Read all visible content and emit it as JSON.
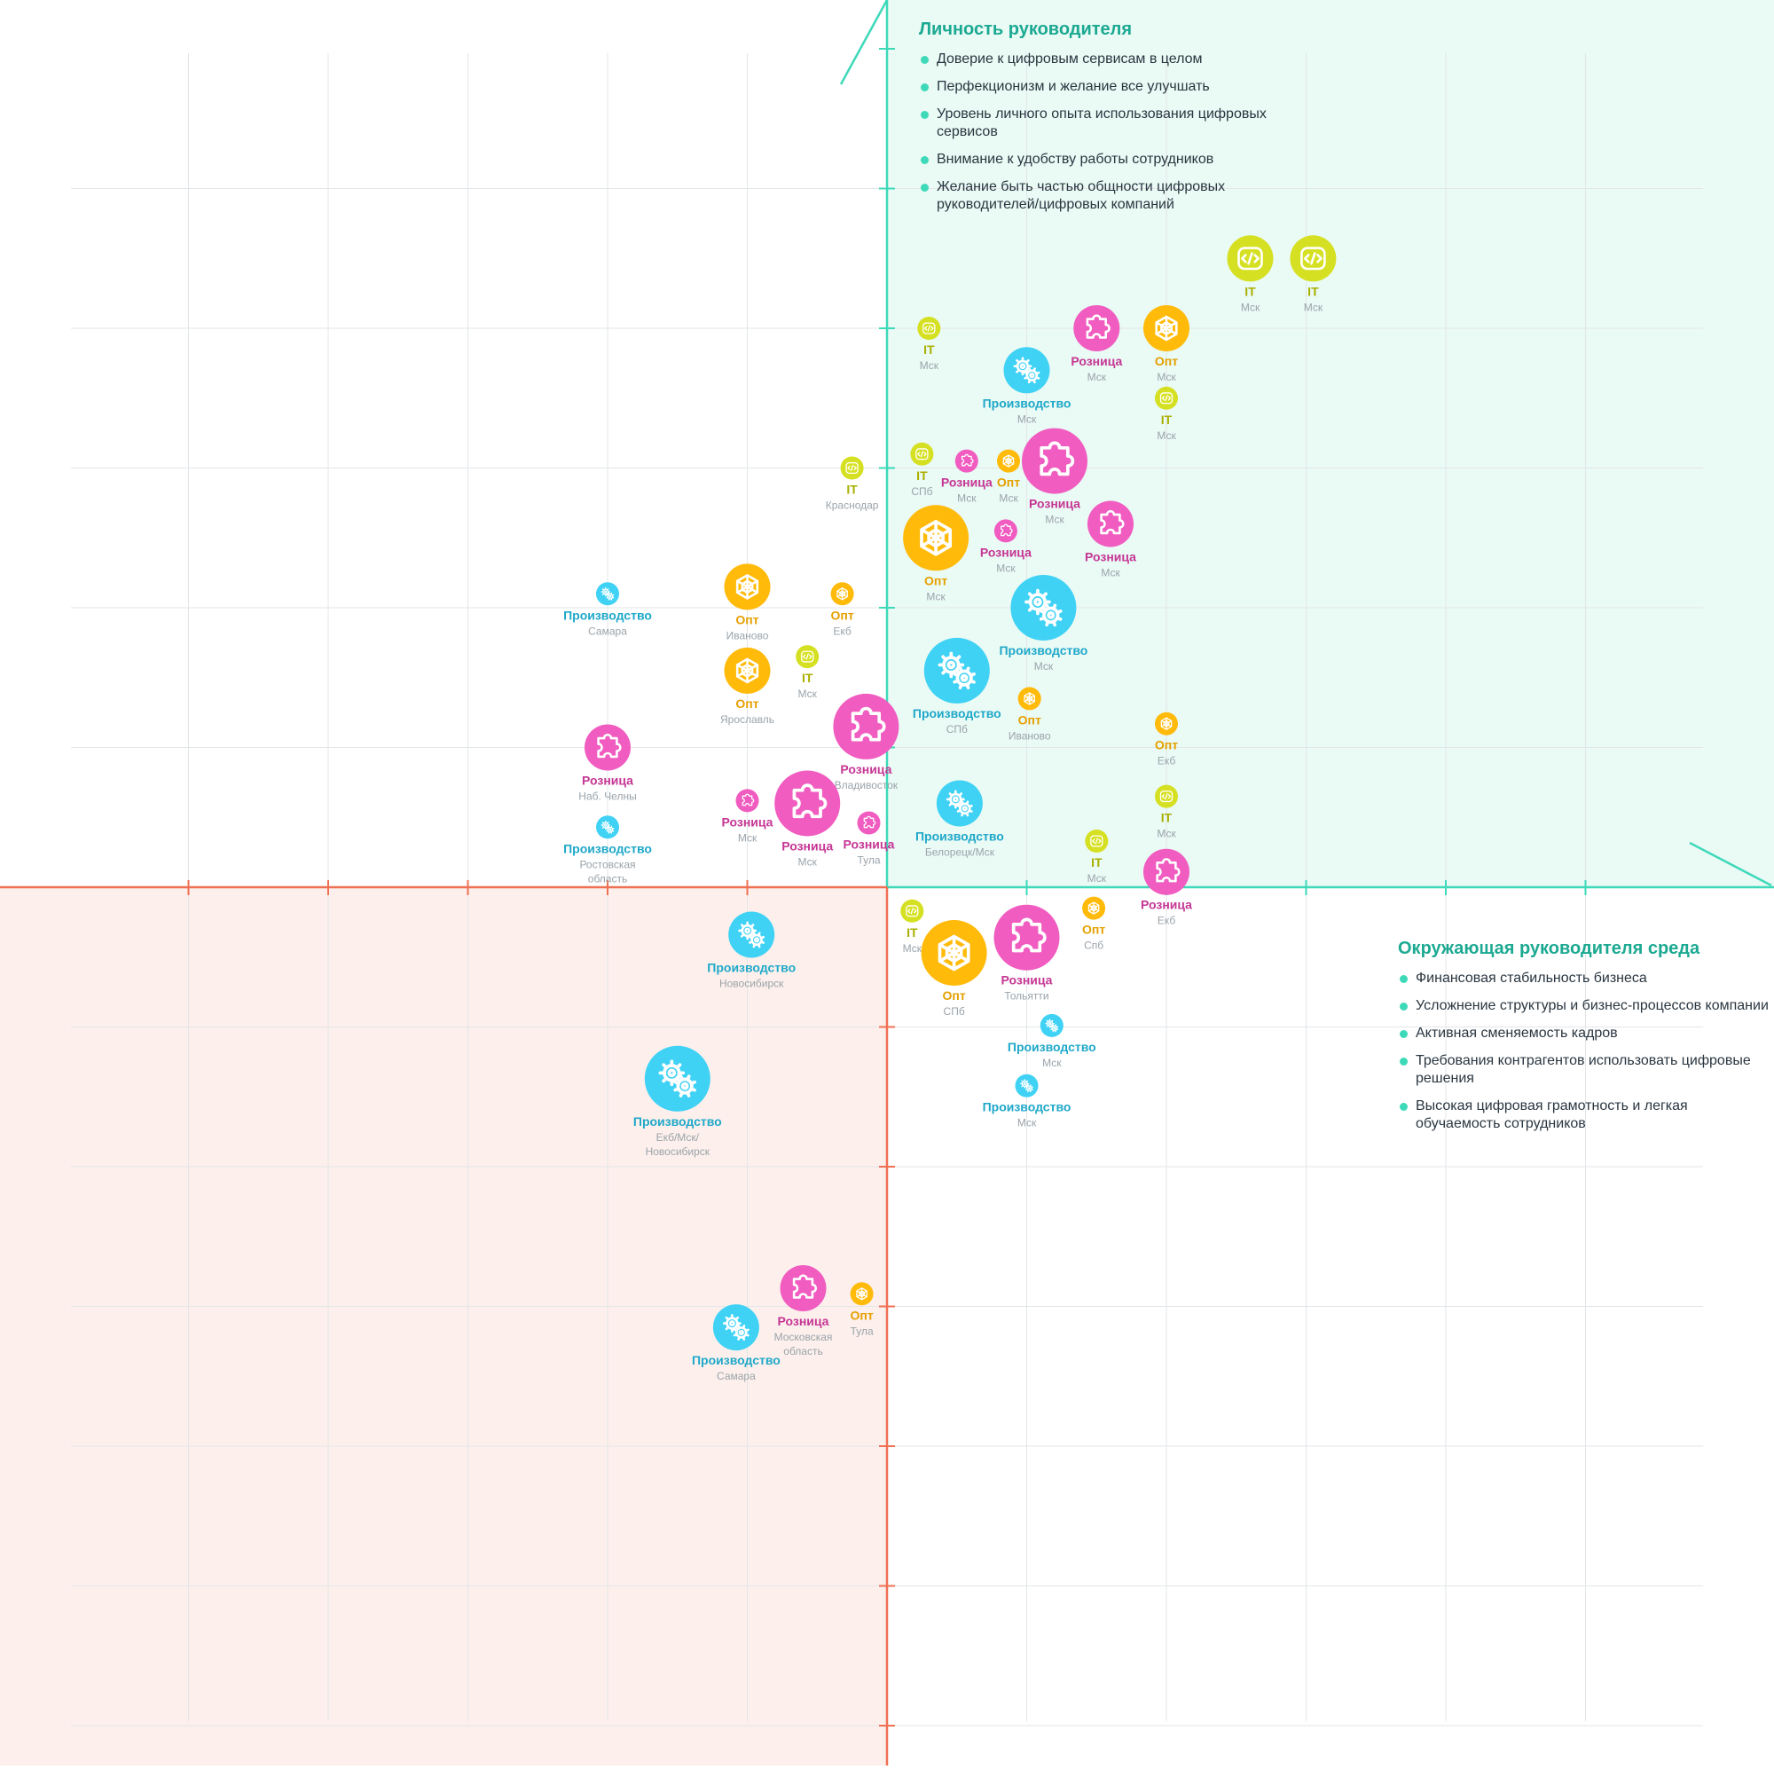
{
  "legend_personality": {
    "title": "Личность руководителя",
    "items": [
      "Доверие к цифровым сервисам в целом",
      "Перфекционизм и желание все улучшать",
      "Уровень личного опыта использования цифровых сервисов",
      "Внимание к удобству работы сотрудников",
      "Желание быть частью общности цифровых руководителей/цифровых компаний"
    ]
  },
  "legend_environment": {
    "title": "Окружающая руководителя среда",
    "items": [
      "Финансовая стабильность бизнеса",
      "Усложнение структуры и бизнес-процессов компании",
      "Активная сменяемость кадров",
      "Требования контрагентов использовать цифровые решения",
      "Высокая цифровая грамотность и легкая обучаемость сотрудников"
    ]
  },
  "colors": {
    "it": "#d6e022",
    "it_text": "#a9b000",
    "opt": "#ffba0a",
    "opt_text": "#e5a000",
    "roznica": "#f05cc0",
    "roznica_text": "#c53694",
    "proizvodstvo": "#3fd2f5",
    "proizvodstvo_text": "#1fa8c9",
    "city_text": "#9aa3aa",
    "green_axis": "#3dd9b9",
    "green_fill": "#eafaf5",
    "red_axis": "#f07054",
    "red_fill": "#fdf0ec"
  },
  "icons": {
    "it": "code-icon",
    "opt": "network-icon",
    "roznica": "puzzle-icon",
    "proizvodstvo": "gears-icon"
  },
  "chart_data": {
    "type": "scatter",
    "xlim": [
      -5,
      5
    ],
    "ylim": [
      -6,
      6
    ],
    "grid": true,
    "points": [
      {
        "cat": "it",
        "label": "IT",
        "city": "Мск",
        "x": 2.6,
        "y": 4.5,
        "r": 26
      },
      {
        "cat": "it",
        "label": "IT",
        "city": "Мск",
        "x": 3.05,
        "y": 4.5,
        "r": 26
      },
      {
        "cat": "roznica",
        "label": "Розница",
        "city": "Мск",
        "x": 1.5,
        "y": 4.0,
        "r": 26
      },
      {
        "cat": "opt",
        "label": "Опт",
        "city": "Мск",
        "x": 2.0,
        "y": 4.0,
        "r": 26
      },
      {
        "cat": "it",
        "label": "IT",
        "city": "Мск",
        "x": 0.3,
        "y": 4.0,
        "r": 13
      },
      {
        "cat": "proizvodstvo",
        "label": "Производство",
        "city": "Мск",
        "x": 1.0,
        "y": 3.7,
        "r": 26
      },
      {
        "cat": "it",
        "label": "IT",
        "city": "Мск",
        "x": 2.0,
        "y": 3.5,
        "r": 13
      },
      {
        "cat": "it",
        "label": "IT",
        "city": "Краснодар",
        "x": -0.25,
        "y": 3.0,
        "r": 13
      },
      {
        "cat": "it",
        "label": "IT",
        "city": "СПб",
        "x": 0.25,
        "y": 3.1,
        "r": 13
      },
      {
        "cat": "roznica",
        "label": "Розница",
        "city": "Мск",
        "x": 0.57,
        "y": 3.05,
        "r": 13
      },
      {
        "cat": "opt",
        "label": "Опт",
        "city": "Мск",
        "x": 0.87,
        "y": 3.05,
        "r": 13
      },
      {
        "cat": "roznica",
        "label": "Розница",
        "city": "Мск",
        "x": 1.2,
        "y": 3.05,
        "r": 37
      },
      {
        "cat": "opt",
        "label": "Опт",
        "city": "Мск",
        "x": 0.35,
        "y": 2.5,
        "r": 37
      },
      {
        "cat": "roznica",
        "label": "Розница",
        "city": "Мск",
        "x": 0.85,
        "y": 2.55,
        "r": 13
      },
      {
        "cat": "roznica",
        "label": "Розница",
        "city": "Мск",
        "x": 1.6,
        "y": 2.6,
        "r": 26
      },
      {
        "cat": "proizvodstvo",
        "label": "Производство",
        "city": "Самара",
        "x": -2.0,
        "y": 2.1,
        "r": 13
      },
      {
        "cat": "opt",
        "label": "Опт",
        "city": "Иваново",
        "x": -1.0,
        "y": 2.15,
        "r": 26
      },
      {
        "cat": "opt",
        "label": "Опт",
        "city": "Екб",
        "x": -0.32,
        "y": 2.1,
        "r": 13
      },
      {
        "cat": "proizvodstvo",
        "label": "Производство",
        "city": "Мск",
        "x": 1.12,
        "y": 2.0,
        "r": 37
      },
      {
        "cat": "it",
        "label": "IT",
        "city": "Мск",
        "x": -0.57,
        "y": 1.65,
        "r": 13
      },
      {
        "cat": "opt",
        "label": "Опт",
        "city": "Ярославль",
        "x": -1.0,
        "y": 1.55,
        "r": 26
      },
      {
        "cat": "proizvodstvo",
        "label": "Производство",
        "city": "СПб",
        "x": 0.5,
        "y": 1.55,
        "r": 37
      },
      {
        "cat": "opt",
        "label": "Опт",
        "city": "Иваново",
        "x": 1.02,
        "y": 1.35,
        "r": 13
      },
      {
        "cat": "opt",
        "label": "Опт",
        "city": "Екб",
        "x": 2.0,
        "y": 1.17,
        "r": 13
      },
      {
        "cat": "roznica",
        "label": "Розница",
        "city": "Владивосток",
        "x": -0.15,
        "y": 1.15,
        "r": 37
      },
      {
        "cat": "roznica",
        "label": "Розница",
        "city": "Наб. Челны",
        "x": -2.0,
        "y": 1.0,
        "r": 26
      },
      {
        "cat": "roznica",
        "label": "Розница",
        "city": "Мск",
        "x": -1.0,
        "y": 0.62,
        "r": 13
      },
      {
        "cat": "roznica",
        "label": "Розница",
        "city": "Мск",
        "x": -0.57,
        "y": 0.6,
        "r": 37
      },
      {
        "cat": "roznica",
        "label": "Розница",
        "city": "Тула",
        "x": -0.13,
        "y": 0.46,
        "r": 13
      },
      {
        "cat": "proizvodstvo",
        "label": "Производство",
        "city": "Белорецк/Мск",
        "x": 0.52,
        "y": 0.6,
        "r": 26
      },
      {
        "cat": "proizvodstvo",
        "label": "Производство",
        "city": "Ростовская область",
        "x": -2.0,
        "y": 0.43,
        "r": 13
      },
      {
        "cat": "it",
        "label": "IT",
        "city": "Мск",
        "x": 2.0,
        "y": 0.65,
        "r": 13
      },
      {
        "cat": "it",
        "label": "IT",
        "city": "Мск",
        "x": 1.5,
        "y": 0.33,
        "r": 13
      },
      {
        "cat": "roznica",
        "label": "Розница",
        "city": "Екб",
        "x": 2.0,
        "y": 0.11,
        "r": 26
      },
      {
        "cat": "it",
        "label": "IT",
        "city": "Мск",
        "x": 0.18,
        "y": -0.17,
        "r": 13
      },
      {
        "cat": "opt",
        "label": "Опт",
        "city": "Спб",
        "x": 1.48,
        "y": -0.15,
        "r": 13
      },
      {
        "cat": "proizvodstvo",
        "label": "Производство",
        "city": "Новосибирск",
        "x": -0.97,
        "y": -0.34,
        "r": 26
      },
      {
        "cat": "opt",
        "label": "Опт",
        "city": "СПб",
        "x": 0.48,
        "y": -0.47,
        "r": 37
      },
      {
        "cat": "roznica",
        "label": "Розница",
        "city": "Тольятти",
        "x": 1.0,
        "y": -0.36,
        "r": 37
      },
      {
        "cat": "proizvodstvo",
        "label": "Производство",
        "city": "Мск",
        "x": 1.18,
        "y": -0.99,
        "r": 13
      },
      {
        "cat": "proizvodstvo",
        "label": "Производство",
        "city": "Мск",
        "x": 1.0,
        "y": -1.42,
        "r": 13
      },
      {
        "cat": "proizvodstvo",
        "label": "Производство",
        "city": "Екб/Мск/ Новосибирск",
        "x": -1.5,
        "y": -1.37,
        "r": 37
      },
      {
        "cat": "roznica",
        "label": "Розница",
        "city": "Московская область",
        "x": -0.6,
        "y": -2.87,
        "r": 26
      },
      {
        "cat": "opt",
        "label": "Опт",
        "city": "Тула",
        "x": -0.18,
        "y": -2.91,
        "r": 13
      },
      {
        "cat": "proizvodstvo",
        "label": "Производство",
        "city": "Самара",
        "x": -1.08,
        "y": -3.15,
        "r": 26
      }
    ]
  }
}
